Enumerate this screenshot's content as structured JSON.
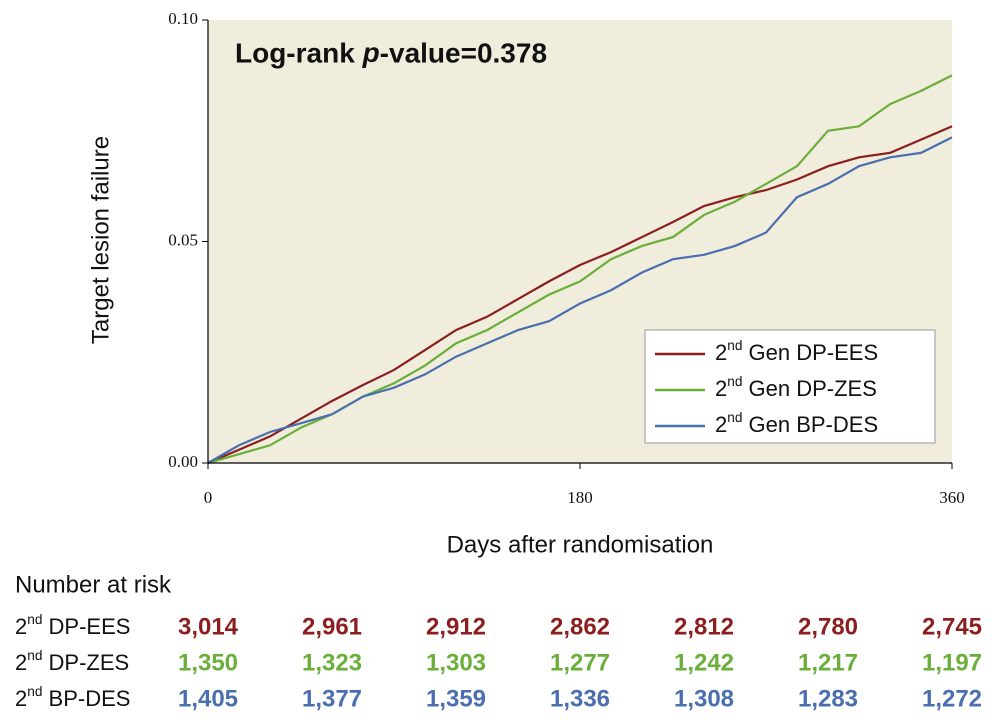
{
  "chart_data": {
    "type": "line",
    "annotation": "Log-rank p-value=0.378",
    "xlabel": "Days after randomisation",
    "ylabel": "Target lesion failure",
    "xlim": [
      0,
      360
    ],
    "ylim": [
      0,
      0.1
    ],
    "xticks": [
      0,
      180,
      360
    ],
    "yticks": [
      {
        "value": 0,
        "label": "0.00"
      },
      {
        "value": 0.05,
        "label": "0.05"
      },
      {
        "value": 0.1,
        "label": "0.10"
      }
    ],
    "background": "#f1eddd",
    "legend": "lower right",
    "x": [
      0,
      15,
      30,
      45,
      60,
      75,
      90,
      105,
      120,
      135,
      150,
      165,
      180,
      195,
      210,
      225,
      240,
      255,
      270,
      285,
      300,
      315,
      330,
      345,
      360
    ],
    "series": [
      {
        "name": "2nd Gen DP-EES",
        "color": "#8b1f1f",
        "values": [
          0,
          0.003,
          0.006,
          0.01,
          0.014,
          0.0176,
          0.021,
          0.0255,
          0.03,
          0.033,
          0.037,
          0.041,
          0.0447,
          0.0476,
          0.051,
          0.0544,
          0.058,
          0.06,
          0.0616,
          0.064,
          0.067,
          0.069,
          0.07,
          0.073,
          0.076
        ]
      },
      {
        "name": "2nd Gen DP-ZES",
        "color": "#6aaf3a",
        "values": [
          0,
          0.002,
          0.004,
          0.008,
          0.011,
          0.015,
          0.018,
          0.022,
          0.027,
          0.03,
          0.034,
          0.038,
          0.041,
          0.046,
          0.049,
          0.051,
          0.056,
          0.059,
          0.063,
          0.067,
          0.075,
          0.076,
          0.081,
          0.084,
          0.0875
        ]
      },
      {
        "name": "2nd Gen BP-DES",
        "color": "#4a6fae",
        "values": [
          0,
          0.004,
          0.007,
          0.009,
          0.011,
          0.015,
          0.017,
          0.02,
          0.024,
          0.027,
          0.03,
          0.032,
          0.036,
          0.039,
          0.043,
          0.046,
          0.047,
          0.049,
          0.052,
          0.06,
          0.063,
          0.067,
          0.069,
          0.07,
          0.0735
        ]
      }
    ],
    "risk_table": {
      "title": "Number at risk",
      "rows": [
        {
          "label": "2nd DP-EES",
          "color": "#8b1f1f",
          "values": [
            "3,014",
            "2,961",
            "2,912",
            "2,862",
            "2,812",
            "2,780",
            "2,745"
          ]
        },
        {
          "label": "2nd DP-ZES",
          "color": "#6aaf3a",
          "values": [
            "1,350",
            "1,323",
            "1,303",
            "1,277",
            "1,242",
            "1,217",
            "1,197"
          ]
        },
        {
          "label": "2nd BP-DES",
          "color": "#4a6fae",
          "values": [
            "1,405",
            "1,377",
            "1,359",
            "1,336",
            "1,308",
            "1,283",
            "1,272"
          ]
        }
      ]
    }
  }
}
